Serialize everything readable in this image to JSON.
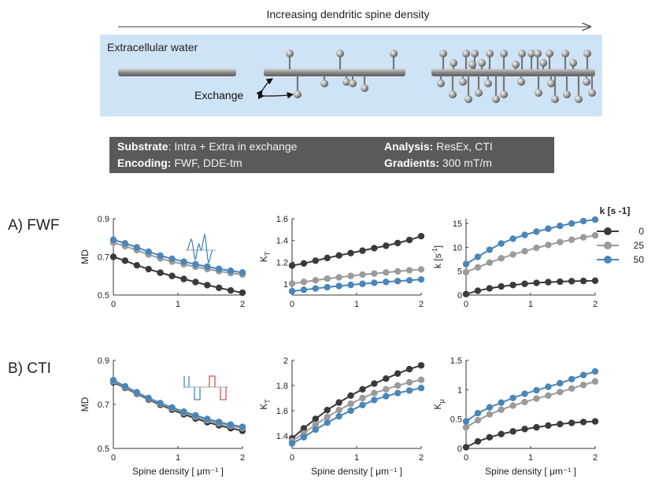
{
  "header": {
    "arrow_label": "Increasing dendritic spine density",
    "extracellular_label": "Extracellular water",
    "exchange_label": "Exchange"
  },
  "banner": {
    "substrate_key": "Substrate",
    "substrate_value": ": Intra + Extra in exchange",
    "analysis_key": "Analysis:",
    "analysis_value": " ResEx, CTI",
    "encoding_key": "Encoding:",
    "encoding_value": " FWF, DDE-tm",
    "gradients_key": "Gradients:",
    "gradients_value": " 300 mT/m"
  },
  "rows": [
    {
      "label": "A) FWF"
    },
    {
      "label": "B) CTI"
    }
  ],
  "legend": {
    "title": "k [s -1]",
    "entries": [
      "0",
      "25",
      "50"
    ]
  },
  "colors": {
    "k0": "#3a3a3a",
    "k25": "#9b9b9b",
    "k50": "#4a86b9",
    "background_box": "#cfe3f6"
  },
  "chart_data": [
    {
      "type": "line",
      "row": "A) FWF",
      "ylabel": "MD",
      "xlabel": "",
      "xlim": [
        0,
        2
      ],
      "ylim": [
        0.5,
        0.9
      ],
      "yticks": [
        "0.5",
        "0.7",
        "0.9"
      ],
      "xticks": [
        "0",
        "1",
        "2"
      ],
      "x": [
        0,
        0.182,
        0.364,
        0.545,
        0.727,
        0.909,
        1.091,
        1.273,
        1.455,
        1.636,
        1.818,
        2.0
      ],
      "series": [
        {
          "name": "0",
          "values": [
            0.7,
            0.68,
            0.656,
            0.636,
            0.617,
            0.6,
            0.584,
            0.568,
            0.552,
            0.538,
            0.524,
            0.512
          ]
        },
        {
          "name": "25",
          "values": [
            0.775,
            0.756,
            0.735,
            0.712,
            0.692,
            0.675,
            0.661,
            0.648,
            0.636,
            0.625,
            0.615,
            0.607
          ]
        },
        {
          "name": "50",
          "values": [
            0.79,
            0.771,
            0.75,
            0.727,
            0.707,
            0.69,
            0.675,
            0.661,
            0.649,
            0.637,
            0.627,
            0.618
          ]
        }
      ]
    },
    {
      "type": "line",
      "row": "A) FWF",
      "ylabel": "K_T",
      "xlabel": "",
      "xlim": [
        0,
        2
      ],
      "ylim": [
        0.9,
        1.6
      ],
      "yticks": [
        "1",
        "1.2",
        "1.4",
        "1.6"
      ],
      "xticks": [
        "0",
        "1",
        "2"
      ],
      "x": [
        0,
        0.182,
        0.364,
        0.545,
        0.727,
        0.909,
        1.091,
        1.273,
        1.455,
        1.636,
        1.818,
        2.0
      ],
      "series": [
        {
          "name": "0",
          "values": [
            1.17,
            1.19,
            1.215,
            1.24,
            1.263,
            1.285,
            1.307,
            1.33,
            1.352,
            1.377,
            1.405,
            1.44
          ]
        },
        {
          "name": "25",
          "values": [
            1.005,
            1.02,
            1.035,
            1.05,
            1.062,
            1.075,
            1.087,
            1.097,
            1.107,
            1.117,
            1.127,
            1.135
          ]
        },
        {
          "name": "50",
          "values": [
            0.935,
            0.948,
            0.96,
            0.972,
            0.983,
            0.993,
            1.003,
            1.012,
            1.02,
            1.028,
            1.035,
            1.043
          ]
        }
      ]
    },
    {
      "type": "line",
      "row": "A) FWF",
      "ylabel": "k [s-1]",
      "xlabel": "",
      "xlim": [
        0,
        2
      ],
      "ylim": [
        0,
        16
      ],
      "yticks": [
        "0",
        "5",
        "10",
        "15"
      ],
      "xticks": [
        "0",
        "1",
        "2"
      ],
      "x": [
        0,
        0.182,
        0.364,
        0.545,
        0.727,
        0.909,
        1.091,
        1.273,
        1.455,
        1.636,
        1.818,
        2.0
      ],
      "series": [
        {
          "name": "0",
          "values": [
            0.2,
            0.9,
            1.4,
            1.8,
            2.1,
            2.35,
            2.55,
            2.7,
            2.8,
            2.9,
            2.95,
            3.0
          ]
        },
        {
          "name": "25",
          "values": [
            4.8,
            5.8,
            6.8,
            7.7,
            8.5,
            9.2,
            9.9,
            10.5,
            11.1,
            11.6,
            12.1,
            12.5
          ]
        },
        {
          "name": "50",
          "values": [
            6.5,
            8.0,
            9.5,
            10.8,
            11.8,
            12.6,
            13.3,
            13.9,
            14.5,
            15.0,
            15.5,
            15.8
          ]
        }
      ]
    },
    {
      "type": "line",
      "row": "B) CTI",
      "ylabel": "MD",
      "xlabel": "Spine density [ μm⁻¹ ]",
      "xlim": [
        0,
        2
      ],
      "ylim": [
        0.5,
        0.9
      ],
      "yticks": [
        "0.5",
        "0.7",
        "0.9"
      ],
      "xticks": [
        "0",
        "1",
        "2"
      ],
      "x": [
        0,
        0.182,
        0.364,
        0.545,
        0.727,
        0.909,
        1.091,
        1.273,
        1.455,
        1.636,
        1.818,
        2.0
      ],
      "series": [
        {
          "name": "0",
          "values": [
            0.8,
            0.775,
            0.748,
            0.722,
            0.698,
            0.676,
            0.655,
            0.636,
            0.619,
            0.605,
            0.592,
            0.58
          ]
        },
        {
          "name": "25",
          "values": [
            0.805,
            0.778,
            0.751,
            0.726,
            0.703,
            0.682,
            0.662,
            0.644,
            0.628,
            0.614,
            0.602,
            0.592
          ]
        },
        {
          "name": "50",
          "values": [
            0.81,
            0.782,
            0.755,
            0.729,
            0.706,
            0.686,
            0.667,
            0.65,
            0.634,
            0.62,
            0.608,
            0.598
          ]
        }
      ]
    },
    {
      "type": "line",
      "row": "B) CTI",
      "ylabel": "K_T",
      "xlabel": "Spine density [ μm⁻¹ ]",
      "xlim": [
        0,
        2
      ],
      "ylim": [
        1.3,
        2.0
      ],
      "yticks": [
        "1.4",
        "1.6",
        "1.8",
        "2"
      ],
      "xticks": [
        "0",
        "1",
        "2"
      ],
      "x": [
        0,
        0.182,
        0.364,
        0.545,
        0.727,
        0.909,
        1.091,
        1.273,
        1.455,
        1.636,
        1.818,
        2.0
      ],
      "series": [
        {
          "name": "0",
          "values": [
            1.38,
            1.46,
            1.535,
            1.605,
            1.665,
            1.72,
            1.77,
            1.815,
            1.855,
            1.895,
            1.93,
            1.96
          ]
        },
        {
          "name": "25",
          "values": [
            1.36,
            1.42,
            1.49,
            1.55,
            1.605,
            1.655,
            1.7,
            1.74,
            1.77,
            1.8,
            1.825,
            1.845
          ]
        },
        {
          "name": "50",
          "values": [
            1.34,
            1.39,
            1.45,
            1.505,
            1.555,
            1.6,
            1.645,
            1.685,
            1.715,
            1.74,
            1.76,
            1.78
          ]
        }
      ]
    },
    {
      "type": "line",
      "row": "B) CTI",
      "ylabel": "K_μ",
      "xlabel": "Spine density [ μm⁻¹ ]",
      "xlim": [
        0,
        2
      ],
      "ylim": [
        0,
        1.5
      ],
      "yticks": [
        "0",
        "0.5",
        "1",
        "1.5"
      ],
      "xticks": [
        "0",
        "1",
        "2"
      ],
      "x": [
        0,
        0.182,
        0.364,
        0.545,
        0.727,
        0.909,
        1.091,
        1.273,
        1.455,
        1.636,
        1.818,
        2.0
      ],
      "series": [
        {
          "name": "0",
          "values": [
            0.02,
            0.12,
            0.19,
            0.245,
            0.29,
            0.33,
            0.36,
            0.39,
            0.415,
            0.435,
            0.45,
            0.46
          ]
        },
        {
          "name": "25",
          "values": [
            0.36,
            0.48,
            0.58,
            0.66,
            0.73,
            0.79,
            0.85,
            0.9,
            0.96,
            1.02,
            1.08,
            1.14
          ]
        },
        {
          "name": "50",
          "values": [
            0.46,
            0.6,
            0.7,
            0.78,
            0.86,
            0.93,
            0.99,
            1.05,
            1.11,
            1.18,
            1.25,
            1.31
          ]
        }
      ]
    }
  ]
}
